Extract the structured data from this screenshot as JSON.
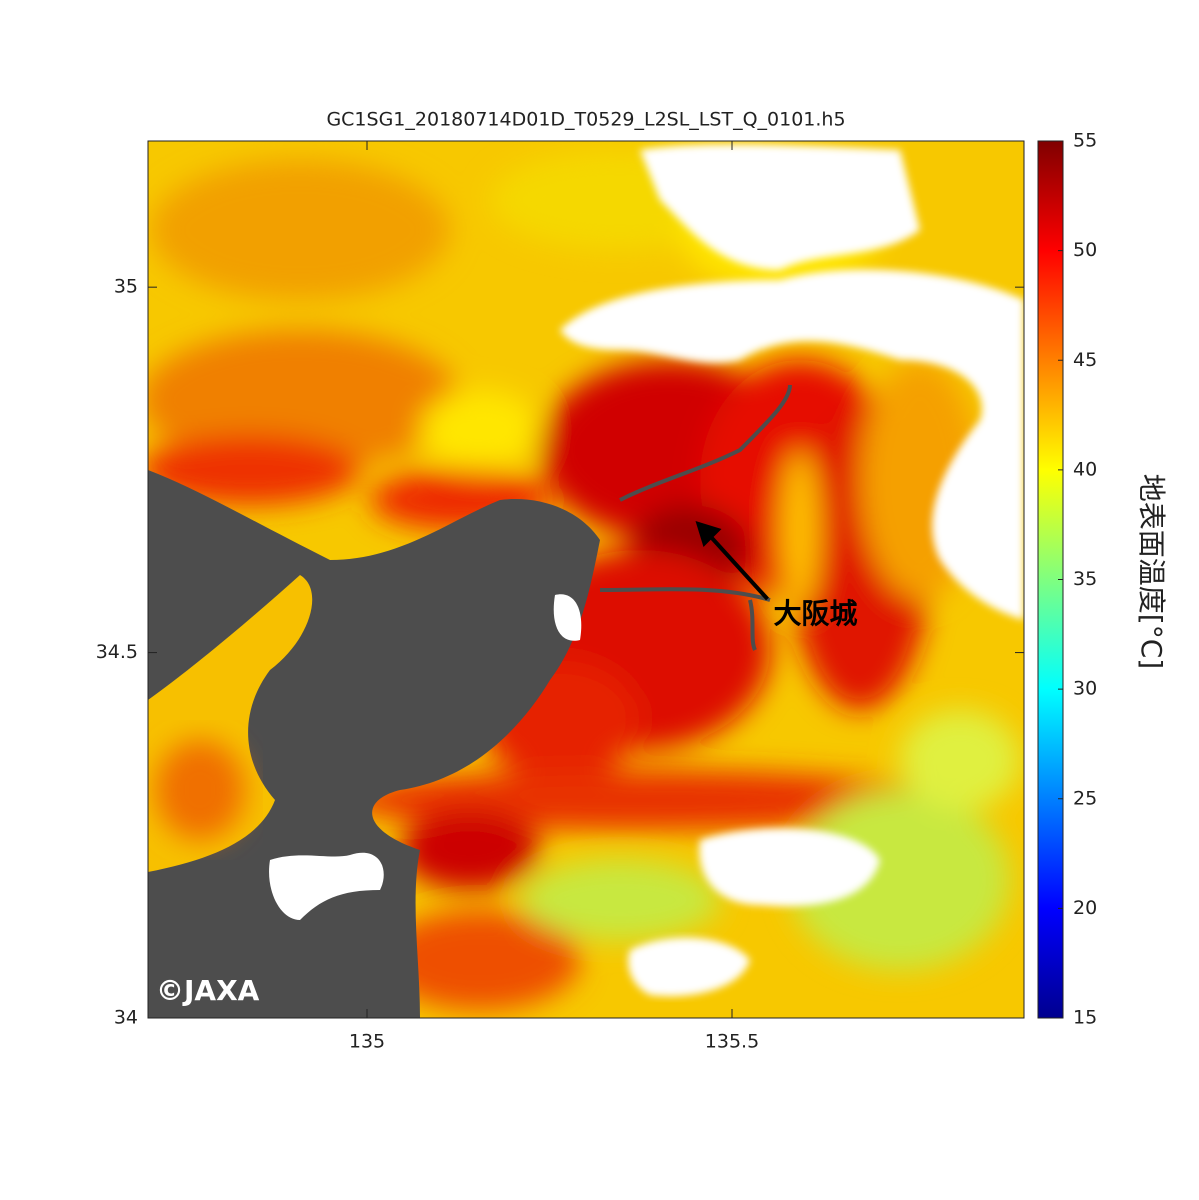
{
  "chart_data": {
    "type": "heatmap",
    "title": "GC1SG1_20180714D01D_T0529_L2SL_LST_Q_0101.h5",
    "xlim": [
      134.7,
      135.9
    ],
    "ylim": [
      34,
      35.2
    ],
    "xticks": [
      135,
      135.5
    ],
    "yticks": [
      34,
      34.5,
      35
    ],
    "colorbar": {
      "label": "地表面温度[°C]",
      "lim": [
        15,
        55
      ],
      "ticks": [
        15,
        20,
        25,
        30,
        35,
        40,
        45,
        50,
        55
      ],
      "colormap": "jet"
    },
    "annotations": [
      {
        "text": "大阪城",
        "x": 135.45,
        "y": 34.68
      }
    ],
    "credit": "©JAXA"
  }
}
